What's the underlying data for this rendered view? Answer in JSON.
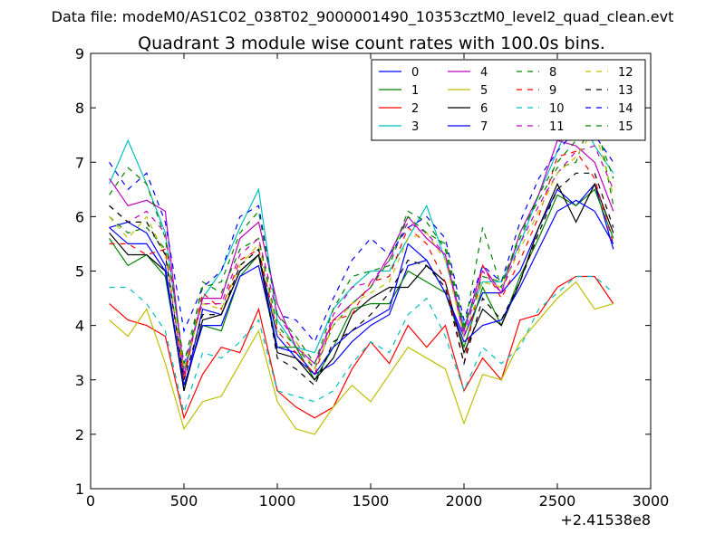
{
  "page": {
    "supertitle": "Data file: modeM0/AS1C02_038T02_9000001490_10353cztM0_level2_quad_clean.evt"
  },
  "chart_data": {
    "type": "line",
    "title": "Quadrant 3 module wise count rates with 100.0s bins.",
    "xlabel": "",
    "ylabel": "",
    "x_offset_label": "+2.41538e8",
    "xlim": [
      0,
      3000
    ],
    "ylim": [
      1,
      9
    ],
    "xticks": [
      "0",
      "500",
      "1000",
      "1500",
      "2000",
      "2500",
      "3000"
    ],
    "yticks": [
      "1",
      "2",
      "3",
      "4",
      "5",
      "6",
      "7",
      "8",
      "9"
    ],
    "grid": false,
    "legend_position": "top-right",
    "x": [
      100,
      200,
      300,
      400,
      500,
      600,
      700,
      800,
      900,
      1000,
      1100,
      1200,
      1300,
      1400,
      1500,
      1600,
      1700,
      1800,
      1900,
      2000,
      2100,
      2200,
      2300,
      2400,
      2500,
      2600,
      2700,
      2800
    ],
    "series": [
      {
        "name": "0",
        "color": "#0000ff",
        "dash": "solid",
        "values": [
          5.8,
          5.9,
          5.7,
          5.1,
          2.8,
          4.3,
          4.2,
          5.0,
          5.3,
          3.8,
          3.4,
          3.1,
          3.3,
          3.7,
          4.0,
          4.2,
          5.1,
          5.2,
          4.6,
          3.8,
          4.6,
          4.6,
          5.0,
          5.8,
          6.5,
          6.2,
          6.6,
          5.4
        ]
      },
      {
        "name": "1",
        "color": "#008000",
        "dash": "solid",
        "values": [
          5.6,
          5.1,
          5.3,
          4.9,
          2.9,
          4.0,
          3.9,
          4.9,
          5.3,
          3.6,
          3.6,
          3.0,
          3.6,
          4.3,
          4.4,
          4.4,
          5.0,
          4.8,
          4.6,
          3.6,
          4.7,
          4.0,
          4.9,
          5.6,
          6.4,
          6.2,
          6.5,
          5.6
        ]
      },
      {
        "name": "2",
        "color": "#ff0000",
        "dash": "solid",
        "values": [
          4.4,
          4.1,
          4.0,
          3.8,
          2.3,
          3.1,
          3.6,
          3.5,
          4.3,
          2.8,
          2.5,
          2.3,
          2.5,
          3.2,
          3.7,
          3.3,
          4.0,
          3.6,
          4.0,
          2.8,
          3.4,
          3.0,
          4.1,
          4.2,
          4.7,
          4.9,
          4.9,
          4.4
        ]
      },
      {
        "name": "3",
        "color": "#00bfbf",
        "dash": "solid",
        "values": [
          6.6,
          7.4,
          6.6,
          5.7,
          3.2,
          4.5,
          5.0,
          5.8,
          6.5,
          4.1,
          3.6,
          3.5,
          4.3,
          4.7,
          5.0,
          5.0,
          5.6,
          6.2,
          5.2,
          4.0,
          4.8,
          4.8,
          5.5,
          6.4,
          7.2,
          8.0,
          7.3,
          6.8
        ]
      },
      {
        "name": "4",
        "color": "#bf00bf",
        "dash": "solid",
        "values": [
          6.7,
          6.2,
          6.3,
          6.1,
          3.1,
          4.5,
          4.5,
          5.6,
          5.9,
          4.4,
          3.6,
          3.3,
          4.1,
          4.4,
          4.7,
          5.3,
          6.0,
          5.6,
          5.3,
          3.9,
          5.1,
          4.6,
          5.7,
          6.4,
          7.4,
          7.3,
          7.0,
          6.1
        ]
      },
      {
        "name": "5",
        "color": "#bfbf00",
        "dash": "solid",
        "values": [
          4.1,
          3.8,
          4.3,
          3.3,
          2.1,
          2.6,
          2.7,
          3.3,
          3.9,
          2.6,
          2.1,
          2.0,
          2.5,
          2.9,
          2.6,
          3.1,
          3.6,
          3.4,
          3.2,
          2.2,
          3.1,
          3.0,
          3.7,
          4.1,
          4.5,
          4.8,
          4.3,
          4.4
        ]
      },
      {
        "name": "6",
        "color": "#000000",
        "dash": "solid",
        "values": [
          5.7,
          5.3,
          5.3,
          5.0,
          2.8,
          4.1,
          4.2,
          5.0,
          5.3,
          3.5,
          3.4,
          3.0,
          3.4,
          4.2,
          4.5,
          4.7,
          4.7,
          5.1,
          4.8,
          3.5,
          4.3,
          4.0,
          4.8,
          5.8,
          6.6,
          5.9,
          6.6,
          5.7
        ]
      },
      {
        "name": "7",
        "color": "#0000ff",
        "dash": "solid",
        "values": [
          5.8,
          5.5,
          5.5,
          5.0,
          2.9,
          4.0,
          4.0,
          4.9,
          5.1,
          3.6,
          3.5,
          3.1,
          3.6,
          3.9,
          4.1,
          4.3,
          5.5,
          5.2,
          4.6,
          3.7,
          4.0,
          4.1,
          4.7,
          5.4,
          6.1,
          6.3,
          6.1,
          5.5
        ]
      },
      {
        "name": "8",
        "color": "#008000",
        "dash": "dashed",
        "values": [
          6.0,
          5.7,
          5.8,
          5.4,
          3.0,
          4.8,
          4.6,
          5.4,
          5.6,
          4.0,
          3.6,
          3.2,
          4.0,
          4.4,
          4.7,
          5.2,
          6.1,
          5.9,
          5.4,
          3.9,
          5.8,
          4.7,
          5.7,
          6.3,
          6.9,
          7.0,
          8.0,
          6.2
        ]
      },
      {
        "name": "9",
        "color": "#ff0000",
        "dash": "dashed",
        "values": [
          5.5,
          5.5,
          5.3,
          5.4,
          3.0,
          4.6,
          4.3,
          5.2,
          5.4,
          3.9,
          3.5,
          3.1,
          4.1,
          4.2,
          4.8,
          4.9,
          5.8,
          5.5,
          4.8,
          3.3,
          5.1,
          4.5,
          5.2,
          6.0,
          7.1,
          7.2,
          6.7,
          5.5
        ]
      },
      {
        "name": "10",
        "color": "#00bfbf",
        "dash": "dashed",
        "values": [
          4.7,
          4.7,
          4.4,
          3.9,
          2.4,
          3.5,
          3.4,
          3.7,
          4.1,
          2.8,
          2.7,
          2.6,
          2.8,
          3.3,
          3.7,
          3.5,
          4.2,
          4.5,
          3.8,
          2.8,
          3.6,
          3.3,
          3.6,
          4.3,
          4.6,
          4.9,
          4.9,
          4.6
        ]
      },
      {
        "name": "11",
        "color": "#bf00bf",
        "dash": "dashed",
        "values": [
          6.2,
          5.9,
          6.1,
          5.7,
          3.3,
          4.4,
          4.4,
          5.3,
          5.6,
          4.2,
          3.7,
          3.2,
          4.2,
          4.7,
          4.8,
          5.2,
          5.9,
          5.7,
          5.3,
          3.8,
          5.0,
          4.6,
          5.5,
          6.2,
          6.8,
          7.2,
          7.3,
          6.5
        ]
      },
      {
        "name": "12",
        "color": "#bfbf00",
        "dash": "dashed",
        "values": [
          6.0,
          5.6,
          6.0,
          5.3,
          3.2,
          4.4,
          4.3,
          5.1,
          5.5,
          3.9,
          3.7,
          3.2,
          4.0,
          4.4,
          4.6,
          4.8,
          5.6,
          5.7,
          5.2,
          3.8,
          4.8,
          4.7,
          5.4,
          6.1,
          6.8,
          7.1,
          7.6,
          6.4
        ]
      },
      {
        "name": "13",
        "color": "#000000",
        "dash": "dashed",
        "values": [
          6.2,
          5.9,
          5.9,
          5.3,
          3.0,
          4.2,
          4.2,
          5.1,
          5.4,
          3.4,
          3.2,
          2.9,
          3.7,
          3.9,
          4.2,
          4.6,
          5.2,
          5.1,
          4.7,
          3.3,
          4.5,
          4.1,
          4.8,
          5.7,
          6.5,
          6.8,
          6.8,
          5.8
        ]
      },
      {
        "name": "14",
        "color": "#0000ff",
        "dash": "dashed",
        "values": [
          7.0,
          6.5,
          6.8,
          5.9,
          3.9,
          4.7,
          5.0,
          6.0,
          6.2,
          4.2,
          4.1,
          3.7,
          4.5,
          5.2,
          5.6,
          5.3,
          5.8,
          6.0,
          5.6,
          4.1,
          5.1,
          4.8,
          5.9,
          6.7,
          7.2,
          7.6,
          7.5,
          7.0
        ]
      },
      {
        "name": "15",
        "color": "#008000",
        "dash": "dashed",
        "values": [
          6.4,
          6.9,
          6.6,
          5.6,
          3.3,
          4.7,
          4.8,
          5.7,
          6.1,
          4.2,
          3.8,
          3.3,
          4.3,
          4.9,
          5.0,
          5.1,
          6.0,
          5.7,
          5.5,
          4.0,
          4.9,
          4.8,
          5.6,
          6.4,
          7.0,
          7.4,
          7.7,
          6.7
        ]
      }
    ]
  }
}
